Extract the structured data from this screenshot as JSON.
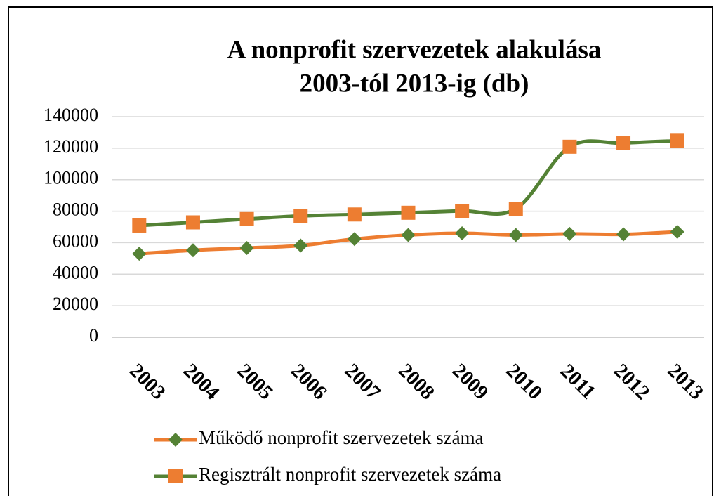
{
  "chart_data": {
    "type": "line",
    "title": [
      "A nonprofit szervezetek alakulása",
      "2003-tól 2013-ig (db)"
    ],
    "categories": [
      "2003",
      "2004",
      "2005",
      "2006",
      "2007",
      "2008",
      "2009",
      "2010",
      "2011",
      "2012",
      "2013"
    ],
    "series": [
      {
        "name": "Működő nonprofit szervezetek száma",
        "color": "#ed7d31",
        "marker": "diamond",
        "marker_color": "#548235",
        "values": [
          53000,
          55200,
          56600,
          58200,
          62300,
          64900,
          66000,
          64900,
          65600,
          65300,
          66900
        ]
      },
      {
        "name": "Regisztrált nonprofit szervezetek száma",
        "color": "#548235",
        "marker": "square",
        "marker_color": "#ed7d31",
        "values": [
          70900,
          72900,
          75000,
          77000,
          77900,
          79000,
          80200,
          81500,
          120900,
          123200,
          124700
        ]
      }
    ],
    "ylim": [
      0,
      140000
    ],
    "yticks": [
      0,
      20000,
      40000,
      60000,
      80000,
      100000,
      120000,
      140000
    ],
    "grid": true,
    "smooth": true,
    "legend": "bottom"
  }
}
